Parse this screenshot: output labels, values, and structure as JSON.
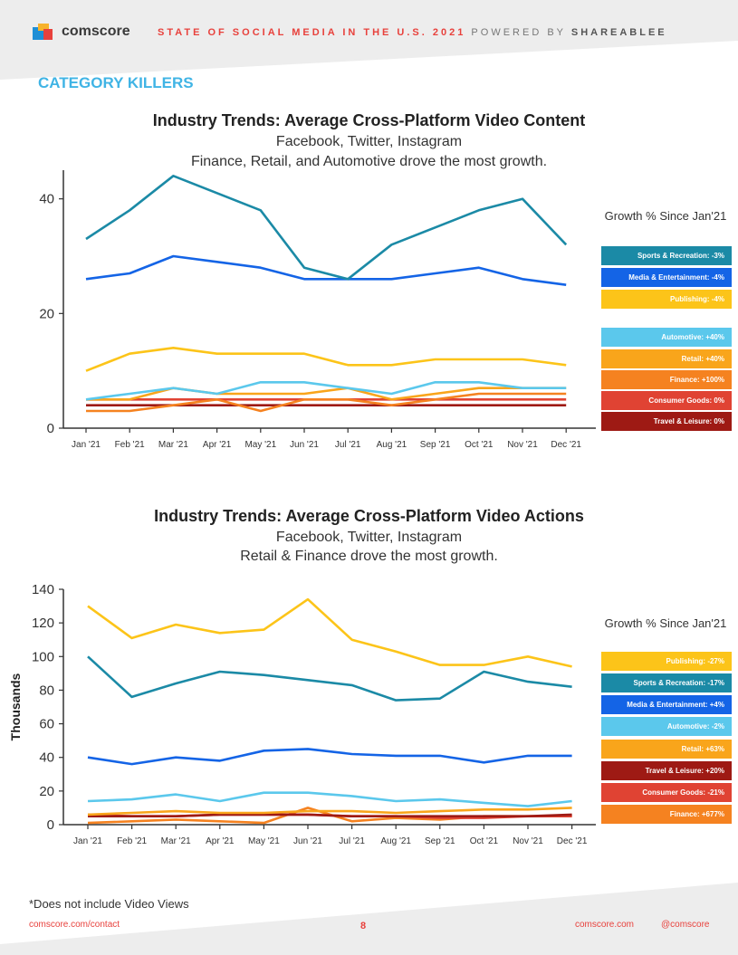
{
  "header": {
    "logo_text": "comscore",
    "title_red": "STATE OF SOCIAL MEDIA IN THE U.S. 2021",
    "title_powered": "POWERED BY",
    "title_brand": "SHAREABLEE"
  },
  "section_title": "CATEGORY KILLERS",
  "footnote": "*Does not include Video Views",
  "footer": {
    "contact": "comscore.com/contact",
    "page": "8",
    "site": "comscore.com",
    "handle": "@comscore"
  },
  "chart_data": [
    {
      "type": "line",
      "title": "Industry Trends: Average Cross-Platform Video Content",
      "subtitle1": "Facebook, Twitter, Instagram",
      "subtitle2": "Finance, Retail, and Automotive drove the most growth.",
      "xlabel": "",
      "ylabel": "",
      "ylim": [
        0,
        45
      ],
      "yticks": [
        0,
        20,
        40
      ],
      "categories": [
        "Jan '21",
        "Feb '21",
        "Mar '21",
        "Apr '21",
        "May '21",
        "Jun '21",
        "Jul '21",
        "Aug '21",
        "Sep '21",
        "Oct '21",
        "Nov '21",
        "Dec '21"
      ],
      "legend_title": "Growth % Since Jan'21",
      "series": [
        {
          "name": "Sports & Recreation: -3%",
          "color": "#1b8aa6",
          "values": [
            33,
            38,
            44,
            41,
            38,
            28,
            26,
            32,
            35,
            38,
            40,
            32
          ]
        },
        {
          "name": "Media & Entertainment: -4%",
          "color": "#1464e6",
          "values": [
            26,
            27,
            30,
            29,
            28,
            26,
            26,
            26,
            27,
            28,
            26,
            25
          ]
        },
        {
          "name": "Publishing: -4%",
          "color": "#fcc419",
          "values": [
            10,
            13,
            14,
            13,
            13,
            13,
            11,
            11,
            12,
            12,
            12,
            11
          ]
        },
        {
          "name": "Automotive: +40%",
          "color": "#5bc8ec",
          "values": [
            5,
            6,
            7,
            6,
            8,
            8,
            7,
            6,
            8,
            8,
            7,
            7
          ]
        },
        {
          "name": "Retail: +40%",
          "color": "#f9a51b",
          "values": [
            5,
            5,
            7,
            6,
            6,
            6,
            7,
            5,
            6,
            7,
            7,
            7
          ]
        },
        {
          "name": "Finance: +100%",
          "color": "#f58220",
          "values": [
            3,
            3,
            4,
            5,
            3,
            5,
            5,
            4,
            5,
            6,
            6,
            6
          ]
        },
        {
          "name": "Consumer Goods: 0%",
          "color": "#e04333",
          "values": [
            5,
            5,
            5,
            5,
            5,
            5,
            5,
            5,
            5,
            5,
            5,
            5
          ]
        },
        {
          "name": "Travel & Leisure: 0%",
          "color": "#9e1a14",
          "values": [
            4,
            4,
            4,
            4,
            4,
            4,
            4,
            4,
            4,
            4,
            4,
            4
          ]
        }
      ]
    },
    {
      "type": "line",
      "title": "Industry Trends: Average Cross-Platform Video Actions",
      "subtitle1": "Facebook, Twitter, Instagram",
      "subtitle2": "Retail & Finance drove the most growth.",
      "xlabel": "",
      "ylabel": "Thousands",
      "ylim": [
        0,
        140
      ],
      "yticks": [
        0,
        20,
        40,
        60,
        80,
        100,
        120,
        140
      ],
      "categories": [
        "Jan '21",
        "Feb '21",
        "Mar '21",
        "Apr '21",
        "May '21",
        "Jun '21",
        "Jul '21",
        "Aug '21",
        "Sep '21",
        "Oct '21",
        "Nov '21",
        "Dec '21"
      ],
      "legend_title": "Growth % Since Jan'21",
      "series": [
        {
          "name": "Publishing: -27%",
          "color": "#fcc419",
          "values": [
            130,
            111,
            119,
            114,
            116,
            134,
            110,
            103,
            95,
            95,
            100,
            94
          ]
        },
        {
          "name": "Sports & Recreation: -17%",
          "color": "#1b8aa6",
          "values": [
            100,
            76,
            84,
            91,
            89,
            86,
            83,
            74,
            75,
            91,
            85,
            82
          ]
        },
        {
          "name": "Media & Entertainment: +4%",
          "color": "#1464e6",
          "values": [
            40,
            36,
            40,
            38,
            44,
            45,
            42,
            41,
            41,
            37,
            41,
            41
          ]
        },
        {
          "name": "Automotive: -2%",
          "color": "#5bc8ec",
          "values": [
            14,
            15,
            18,
            14,
            19,
            19,
            17,
            14,
            15,
            13,
            11,
            14
          ]
        },
        {
          "name": "Retail: +63%",
          "color": "#f9a51b",
          "values": [
            6,
            7,
            8,
            7,
            7,
            8,
            8,
            7,
            8,
            9,
            9,
            10
          ]
        },
        {
          "name": "Travel & Leisure: +20%",
          "color": "#9e1a14",
          "values": [
            5,
            5,
            5,
            6,
            6,
            6,
            5,
            5,
            5,
            5,
            5,
            6
          ]
        },
        {
          "name": "Consumer Goods: -21%",
          "color": "#e04333",
          "values": [
            6,
            5,
            5,
            6,
            6,
            6,
            5,
            5,
            4,
            4,
            5,
            5
          ]
        },
        {
          "name": "Finance: +677%",
          "color": "#f58220",
          "values": [
            1,
            2,
            3,
            2,
            1,
            10,
            2,
            4,
            3,
            5,
            5,
            5
          ]
        }
      ]
    }
  ]
}
